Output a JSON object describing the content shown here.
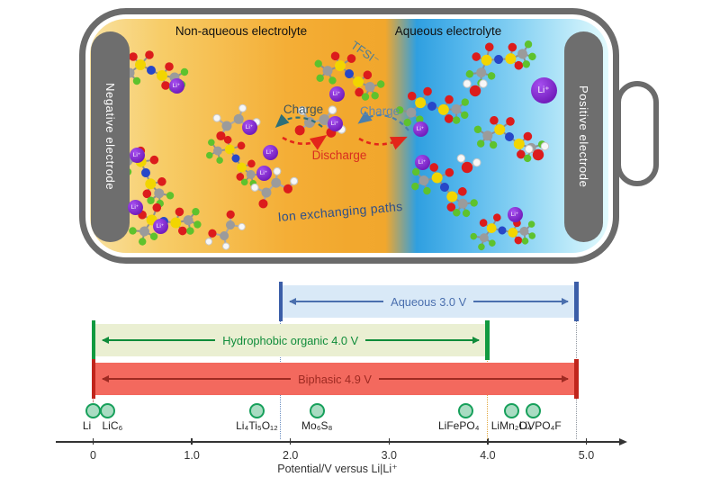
{
  "colors": {
    "battery_border": "#6b6b6b",
    "electrode": "#6e6e6e",
    "gradient_orange": "#f1a72d",
    "gradient_blue": "#2f9fe0",
    "li_ion_purple": "#6a0dad",
    "aqueous_fill": "#d9e9f7",
    "aqueous_accent": "#3b5ea8",
    "organic_fill": "#eaefd2",
    "organic_accent": "#129a40",
    "biphasic_fill": "#f3695e",
    "biphasic_accent": "#c0251c",
    "material_fill": "#a9dcc2",
    "material_border": "#17a05b",
    "charge_arrow_teal": "#2e6f78",
    "charge_arrow_blue": "#4a7fae",
    "discharge_arrow_red": "#e3261a"
  },
  "battery": {
    "non_aqueous_label": "Non-aqueous electrolyte",
    "aqueous_label": "Aqueous electrolyte",
    "negative_electrode": "Negative electrode",
    "positive_electrode": "Positive electrode",
    "tfsi_label": "TFSI⁻",
    "charge_left": "Charge",
    "charge_right": "Charge",
    "discharge": "Discharge",
    "ion_paths": "Ion exchanging paths",
    "li_ion": "Li⁺"
  },
  "chart_data": {
    "type": "bar",
    "subtype": "horizontal-range-intervals",
    "title": "",
    "xlabel": "Potential/V versus Li|Li⁺",
    "xlim": [
      0,
      5.4
    ],
    "grid": false,
    "ticks": [
      {
        "v": 0,
        "label": "0"
      },
      {
        "v": 1.0,
        "label": "1.0"
      },
      {
        "v": 2.0,
        "label": "2.0"
      },
      {
        "v": 3.0,
        "label": "3.0"
      },
      {
        "v": 4.0,
        "label": "4.0"
      },
      {
        "v": 5.0,
        "label": "5.0"
      }
    ],
    "windows": [
      {
        "name": "aqueous",
        "label": "Aqueous 3.0 V",
        "from": 1.9,
        "to": 4.9,
        "width_v": 3.0
      },
      {
        "name": "hydrophobic-organic",
        "label": "Hydrophobic organic 4.0 V",
        "from": 0.0,
        "to": 4.0,
        "width_v": 4.0
      },
      {
        "name": "biphasic",
        "label": "Biphasic 4.9 V",
        "from": 0.0,
        "to": 4.9,
        "width_v": 4.9
      }
    ],
    "materials": [
      {
        "label": "Li",
        "potential": 0.0
      },
      {
        "label": "LiC₆",
        "potential": 0.15
      },
      {
        "label": "Li₄Ti₅O₁₂",
        "potential": 1.66
      },
      {
        "label": "Mo₆S₈",
        "potential": 2.27
      },
      {
        "label": "LiFePO₄",
        "potential": 3.78
      },
      {
        "label": "LiMn₂O₄",
        "potential": 4.24
      },
      {
        "label": "LiVPO₄F",
        "potential": 4.46
      }
    ]
  }
}
